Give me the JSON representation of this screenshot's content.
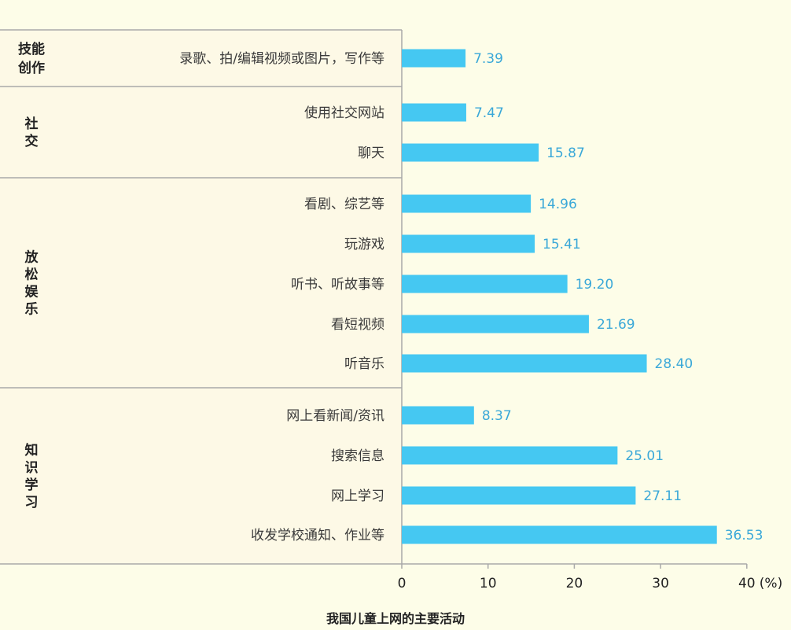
{
  "chart_data": {
    "type": "bar",
    "orientation": "horizontal",
    "caption": "我国儿童上网的主要活动",
    "unit_label": "(%)",
    "xlim": [
      0,
      40
    ],
    "ticks": [
      0,
      10,
      20,
      30,
      40
    ],
    "tick_labels": [
      "0",
      "10",
      "20",
      "30",
      "40"
    ],
    "groups": [
      {
        "name": "技能创作",
        "lines": [
          "技能",
          "创作"
        ],
        "items": [
          {
            "label": "录歌、拍/编辑视频或图片，写作等",
            "value": 7.39,
            "value_label": "7.39"
          }
        ]
      },
      {
        "name": "社交",
        "lines": [
          "社",
          "交"
        ],
        "items": [
          {
            "label": "使用社交网站",
            "value": 7.47,
            "value_label": "7.47"
          },
          {
            "label": "聊天",
            "value": 15.87,
            "value_label": "15.87"
          }
        ]
      },
      {
        "name": "放松娱乐",
        "lines": [
          "放",
          "松",
          "娱",
          "乐"
        ],
        "items": [
          {
            "label": "看剧、综艺等",
            "value": 14.96,
            "value_label": "14.96"
          },
          {
            "label": "玩游戏",
            "value": 15.41,
            "value_label": "15.41"
          },
          {
            "label": "听书、听故事等",
            "value": 19.2,
            "value_label": "19.20"
          },
          {
            "label": "看短视频",
            "value": 21.69,
            "value_label": "21.69"
          },
          {
            "label": "听音乐",
            "value": 28.4,
            "value_label": "28.40"
          }
        ]
      },
      {
        "name": "知识学习",
        "lines": [
          "知",
          "识",
          "学",
          "习"
        ],
        "items": [
          {
            "label": "网上看新闻/资讯",
            "value": 8.37,
            "value_label": "8.37"
          },
          {
            "label": "搜索信息",
            "value": 25.01,
            "value_label": "25.01"
          },
          {
            "label": "网上学习",
            "value": 27.11,
            "value_label": "27.11"
          },
          {
            "label": "收发学校通知、作业等",
            "value": 36.53,
            "value_label": "36.53"
          }
        ]
      }
    ],
    "colors": {
      "bar": "#45c8f2",
      "value_text": "#3aa8d8",
      "panel": "#fdf9e6",
      "divider": "#a9a9a9"
    }
  }
}
